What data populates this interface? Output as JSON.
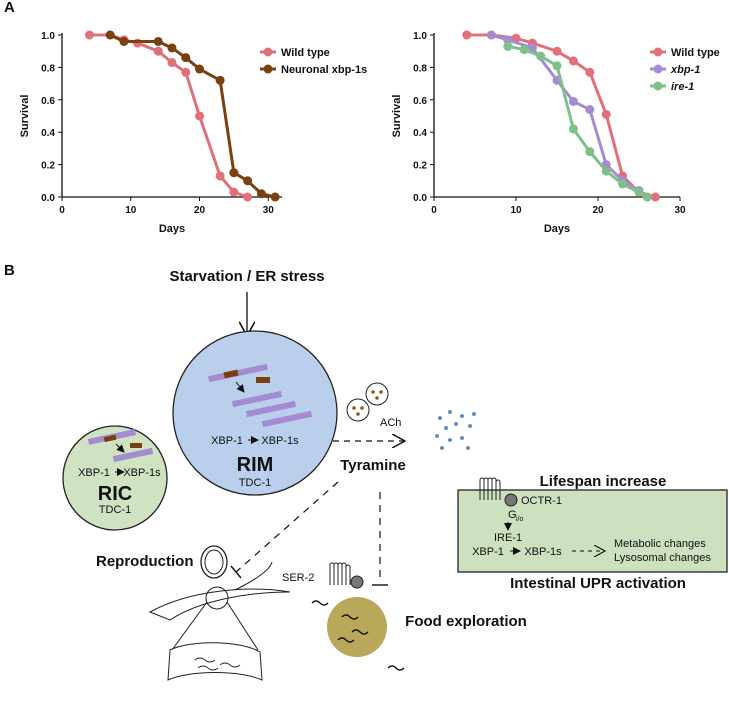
{
  "panel_a": "A",
  "chart_data": [
    {
      "type": "line",
      "xlabel": "Days",
      "ylabel": "Survival",
      "xlim": [
        0,
        32
      ],
      "xticks": [
        0,
        10,
        20,
        30
      ],
      "ylim": [
        0,
        1
      ],
      "yticks": [
        {
          "value": 0,
          "label": "0.0"
        },
        0.2,
        0.4,
        0.6,
        0.8,
        {
          "value": 1,
          "label": "1.0"
        }
      ],
      "series": [
        {
          "name": "Wild type",
          "color": "#e0707a",
          "x": [
            4,
            7,
            9,
            11,
            14,
            16,
            18,
            20,
            23,
            25,
            27
          ],
          "values": [
            1.0,
            1.0,
            0.97,
            0.95,
            0.9,
            0.83,
            0.77,
            0.5,
            0.13,
            0.03,
            0.0
          ]
        },
        {
          "name": "Neuronal xbp-1s",
          "color": "#7a4010",
          "x": [
            7,
            9,
            14,
            16,
            18,
            20,
            23,
            25,
            27,
            29,
            31
          ],
          "values": [
            1.0,
            0.96,
            0.96,
            0.92,
            0.86,
            0.79,
            0.72,
            0.15,
            0.1,
            0.02,
            0.0
          ]
        }
      ]
    },
    {
      "type": "line",
      "xlabel": "Days",
      "ylabel": "Survival",
      "xlim": [
        0,
        30
      ],
      "xticks": [
        0,
        10,
        20,
        30
      ],
      "ylim": [
        0,
        1
      ],
      "yticks": [
        {
          "value": 0,
          "label": "0.0"
        },
        0.2,
        0.4,
        0.6,
        0.8,
        {
          "value": 1,
          "label": "1.0"
        }
      ],
      "series": [
        {
          "name": "Wild type",
          "color": "#e0707a",
          "x": [
            4,
            7,
            10,
            12,
            15,
            17,
            19,
            21,
            23,
            25,
            27
          ],
          "values": [
            1.0,
            1.0,
            0.98,
            0.95,
            0.9,
            0.84,
            0.77,
            0.51,
            0.13,
            0.03,
            0.0
          ]
        },
        {
          "name": "xbp-1",
          "color": "#a58cd0",
          "x": [
            7,
            9,
            12,
            15,
            17,
            19,
            21,
            23,
            25,
            26
          ],
          "values": [
            1.0,
            0.97,
            0.92,
            0.72,
            0.59,
            0.54,
            0.2,
            0.1,
            0.04,
            0.0
          ]
        },
        {
          "name": "ire-1",
          "color": "#7fc08a",
          "x": [
            9,
            11,
            13,
            15,
            17,
            19,
            21,
            23,
            25,
            26
          ],
          "values": [
            0.93,
            0.91,
            0.87,
            0.81,
            0.42,
            0.28,
            0.16,
            0.08,
            0.03,
            0.0
          ]
        }
      ]
    }
  ],
  "diagram": {
    "panel": "B",
    "stimulus": "Starvation / ER stress",
    "ric": {
      "name": "RIC",
      "marker": "TDC-1",
      "from": "XBP-1",
      "to": "XBP-1s"
    },
    "rim": {
      "name": "RIM",
      "marker": "TDC-1",
      "from": "XBP-1",
      "to": "XBP-1s"
    },
    "ach": "ACh",
    "tyramine": "Tyramine",
    "intestine": {
      "title": "Lifespan increase",
      "receptor": "OCTR-1",
      "g": "G",
      "g_sub": "i/o",
      "ire": "IRE-1",
      "from": "XBP-1",
      "to": "XBP-1s",
      "effects": [
        "Metabolic changes",
        "Lysosomal changes"
      ],
      "caption": "Intestinal UPR activation"
    },
    "reproduction": "Reproduction",
    "ser2": "SER-2",
    "food": "Food exploration"
  }
}
